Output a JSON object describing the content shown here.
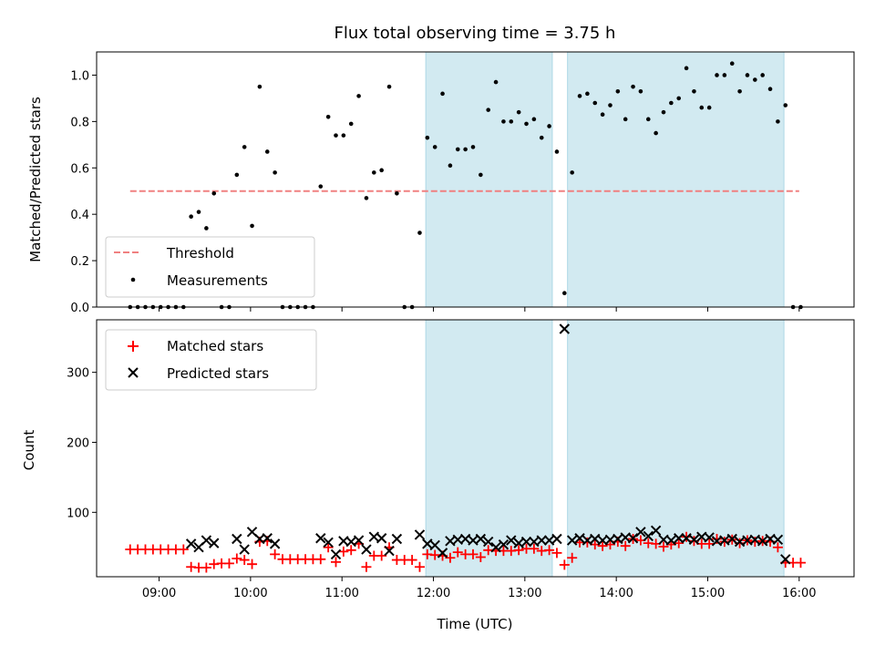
{
  "chart_data": [
    {
      "type": "scatter",
      "title": "Flux total observing time = 3.75 h",
      "xlabel": "",
      "ylabel": "Matched/Predicted stars",
      "ylim": [
        0,
        1.1
      ],
      "yticks": [
        "0.0",
        "0.2",
        "0.4",
        "0.6",
        "0.8",
        "1.0"
      ],
      "grid": false,
      "legend_position": "lower-left",
      "observing_windows": [
        [
          "11:55",
          "13:18"
        ],
        [
          "13:28",
          "15:50"
        ]
      ],
      "window_color": "#add8e6",
      "threshold": {
        "name": "Threshold",
        "y": 0.5,
        "x_range": [
          "08:41",
          "16:00"
        ],
        "color": "#f08080",
        "style": "dashed"
      },
      "series": [
        {
          "name": "Measurements",
          "marker": "dot",
          "color": "#000000",
          "points": [
            [
              "08:41",
              0
            ],
            [
              "08:46",
              0
            ],
            [
              "08:51",
              0
            ],
            [
              "08:56",
              0
            ],
            [
              "09:01",
              0
            ],
            [
              "09:06",
              0
            ],
            [
              "09:11",
              0
            ],
            [
              "09:16",
              0
            ],
            [
              "09:21",
              0.39
            ],
            [
              "09:26",
              0.41
            ],
            [
              "09:31",
              0.34
            ],
            [
              "09:36",
              0.49
            ],
            [
              "09:41",
              0
            ],
            [
              "09:46",
              0
            ],
            [
              "09:51",
              0.57
            ],
            [
              "09:56",
              0.69
            ],
            [
              "10:01",
              0.35
            ],
            [
              "10:06",
              0.95
            ],
            [
              "10:11",
              0.67
            ],
            [
              "10:16",
              0.58
            ],
            [
              "10:21",
              0
            ],
            [
              "10:26",
              0
            ],
            [
              "10:31",
              0
            ],
            [
              "10:36",
              0
            ],
            [
              "10:41",
              0
            ],
            [
              "10:46",
              0.52
            ],
            [
              "10:51",
              0.82
            ],
            [
              "10:56",
              0.74
            ],
            [
              "11:01",
              0.74
            ],
            [
              "11:06",
              0.79
            ],
            [
              "11:11",
              0.91
            ],
            [
              "11:16",
              0.47
            ],
            [
              "11:21",
              0.58
            ],
            [
              "11:26",
              0.59
            ],
            [
              "11:31",
              0.95
            ],
            [
              "11:36",
              0.49
            ],
            [
              "11:41",
              0
            ],
            [
              "11:46",
              0
            ],
            [
              "11:51",
              0.32
            ],
            [
              "11:56",
              0.73
            ],
            [
              "12:01",
              0.69
            ],
            [
              "12:06",
              0.92
            ],
            [
              "12:11",
              0.61
            ],
            [
              "12:16",
              0.68
            ],
            [
              "12:21",
              0.68
            ],
            [
              "12:26",
              0.69
            ],
            [
              "12:31",
              0.57
            ],
            [
              "12:36",
              0.85
            ],
            [
              "12:41",
              0.97
            ],
            [
              "12:46",
              0.8
            ],
            [
              "12:51",
              0.8
            ],
            [
              "12:56",
              0.84
            ],
            [
              "13:01",
              0.79
            ],
            [
              "13:06",
              0.81
            ],
            [
              "13:11",
              0.73
            ],
            [
              "13:16",
              0.78
            ],
            [
              "13:21",
              0.67
            ],
            [
              "13:26",
              0.06
            ],
            [
              "13:31",
              0.58
            ],
            [
              "13:36",
              0.91
            ],
            [
              "13:41",
              0.92
            ],
            [
              "13:46",
              0.88
            ],
            [
              "13:51",
              0.83
            ],
            [
              "13:56",
              0.87
            ],
            [
              "14:01",
              0.93
            ],
            [
              "14:06",
              0.81
            ],
            [
              "14:11",
              0.95
            ],
            [
              "14:16",
              0.93
            ],
            [
              "14:21",
              0.81
            ],
            [
              "14:26",
              0.75
            ],
            [
              "14:31",
              0.84
            ],
            [
              "14:36",
              0.88
            ],
            [
              "14:41",
              0.9
            ],
            [
              "14:46",
              1.03
            ],
            [
              "14:51",
              0.93
            ],
            [
              "14:56",
              0.86
            ],
            [
              "15:01",
              0.86
            ],
            [
              "15:06",
              1.0
            ],
            [
              "15:11",
              1.0
            ],
            [
              "15:16",
              1.05
            ],
            [
              "15:21",
              0.93
            ],
            [
              "15:26",
              1.0
            ],
            [
              "15:31",
              0.98
            ],
            [
              "15:36",
              1.0
            ],
            [
              "15:41",
              0.94
            ],
            [
              "15:46",
              0.8
            ],
            [
              "15:51",
              0.87
            ],
            [
              "15:56",
              0
            ],
            [
              "16:01",
              0
            ]
          ]
        }
      ],
      "legend": [
        {
          "label": "Threshold",
          "marker": "dashed-line",
          "color": "#f08080"
        },
        {
          "label": "Measurements",
          "marker": "dot",
          "color": "#000000"
        }
      ]
    },
    {
      "type": "scatter",
      "title": "",
      "xlabel": "Time (UTC)",
      "ylabel": "Count",
      "ylim": [
        8,
        375
      ],
      "yticks": [
        "100",
        "200",
        "300"
      ],
      "xticks": [
        "09:00",
        "10:00",
        "11:00",
        "12:00",
        "13:00",
        "14:00",
        "15:00",
        "16:00"
      ],
      "xlim": [
        "08:19",
        "16:36"
      ],
      "grid": false,
      "legend_position": "upper-left",
      "observing_windows": [
        [
          "11:55",
          "13:18"
        ],
        [
          "13:28",
          "15:50"
        ]
      ],
      "window_color": "#add8e6",
      "series": [
        {
          "name": "Matched stars",
          "marker": "plus",
          "color": "#ff0000",
          "points": [
            [
              "08:41",
              47
            ],
            [
              "08:46",
              47
            ],
            [
              "08:51",
              47
            ],
            [
              "08:56",
              47
            ],
            [
              "09:01",
              47
            ],
            [
              "09:06",
              47
            ],
            [
              "09:11",
              47
            ],
            [
              "09:16",
              47
            ],
            [
              "09:21",
              22
            ],
            [
              "09:26",
              21
            ],
            [
              "09:31",
              21
            ],
            [
              "09:36",
              26
            ],
            [
              "09:41",
              27
            ],
            [
              "09:46",
              27
            ],
            [
              "09:51",
              34
            ],
            [
              "09:56",
              32
            ],
            [
              "10:01",
              26
            ],
            [
              "10:06",
              58
            ],
            [
              "10:11",
              59
            ],
            [
              "10:16",
              40
            ],
            [
              "10:21",
              33
            ],
            [
              "10:26",
              33
            ],
            [
              "10:31",
              33
            ],
            [
              "10:36",
              33
            ],
            [
              "10:41",
              33
            ],
            [
              "10:46",
              33
            ],
            [
              "10:51",
              50
            ],
            [
              "10:56",
              29
            ],
            [
              "11:01",
              44
            ],
            [
              "11:06",
              46
            ],
            [
              "11:11",
              55
            ],
            [
              "11:16",
              22
            ],
            [
              "11:21",
              38
            ],
            [
              "11:26",
              38
            ],
            [
              "11:31",
              50
            ],
            [
              "11:36",
              32
            ],
            [
              "11:41",
              32
            ],
            [
              "11:46",
              32
            ],
            [
              "11:51",
              22
            ],
            [
              "11:56",
              40
            ],
            [
              "12:01",
              39
            ],
            [
              "12:06",
              38
            ],
            [
              "12:11",
              35
            ],
            [
              "12:16",
              43
            ],
            [
              "12:21",
              40
            ],
            [
              "12:26",
              40
            ],
            [
              "12:31",
              36
            ],
            [
              "12:36",
              46
            ],
            [
              "12:41",
              45
            ],
            [
              "12:46",
              45
            ],
            [
              "12:51",
              45
            ],
            [
              "12:56",
              46
            ],
            [
              "13:01",
              48
            ],
            [
              "13:06",
              48
            ],
            [
              "13:11",
              45
            ],
            [
              "13:16",
              46
            ],
            [
              "13:21",
              42
            ],
            [
              "13:26",
              25
            ],
            [
              "13:31",
              35
            ],
            [
              "13:36",
              57
            ],
            [
              "13:41",
              57
            ],
            [
              "13:46",
              54
            ],
            [
              "13:51",
              52
            ],
            [
              "13:56",
              54
            ],
            [
              "14:01",
              58
            ],
            [
              "14:06",
              52
            ],
            [
              "14:11",
              62
            ],
            [
              "14:16",
              60
            ],
            [
              "14:21",
              56
            ],
            [
              "14:26",
              55
            ],
            [
              "14:31",
              51
            ],
            [
              "14:36",
              54
            ],
            [
              "14:41",
              56
            ],
            [
              "14:46",
              65
            ],
            [
              "14:51",
              59
            ],
            [
              "14:56",
              55
            ],
            [
              "15:01",
              55
            ],
            [
              "15:06",
              62
            ],
            [
              "15:11",
              58
            ],
            [
              "15:16",
              61
            ],
            [
              "15:21",
              56
            ],
            [
              "15:26",
              60
            ],
            [
              "15:31",
              58
            ],
            [
              "15:36",
              59
            ],
            [
              "15:41",
              58
            ],
            [
              "15:46",
              50
            ],
            [
              "15:51",
              28
            ],
            [
              "15:56",
              28
            ],
            [
              "16:01",
              28
            ]
          ]
        },
        {
          "name": "Predicted stars",
          "marker": "x",
          "color": "#000000",
          "points": [
            [
              "09:21",
              55
            ],
            [
              "09:26",
              50
            ],
            [
              "09:31",
              60
            ],
            [
              "09:36",
              56
            ],
            [
              "09:51",
              62
            ],
            [
              "09:56",
              47
            ],
            [
              "10:01",
              72
            ],
            [
              "10:06",
              62
            ],
            [
              "10:11",
              63
            ],
            [
              "10:16",
              55
            ],
            [
              "10:46",
              63
            ],
            [
              "10:51",
              57
            ],
            [
              "10:56",
              40
            ],
            [
              "11:01",
              59
            ],
            [
              "11:06",
              58
            ],
            [
              "11:11",
              60
            ],
            [
              "11:16",
              47
            ],
            [
              "11:21",
              65
            ],
            [
              "11:26",
              63
            ],
            [
              "11:31",
              45
            ],
            [
              "11:36",
              62
            ],
            [
              "11:51",
              68
            ],
            [
              "11:56",
              55
            ],
            [
              "12:01",
              53
            ],
            [
              "12:06",
              42
            ],
            [
              "12:11",
              59
            ],
            [
              "12:16",
              61
            ],
            [
              "12:21",
              62
            ],
            [
              "12:26",
              60
            ],
            [
              "12:31",
              62
            ],
            [
              "12:36",
              58
            ],
            [
              "12:41",
              50
            ],
            [
              "12:46",
              54
            ],
            [
              "12:51",
              60
            ],
            [
              "12:56",
              56
            ],
            [
              "13:01",
              58
            ],
            [
              "13:06",
              58
            ],
            [
              "13:11",
              60
            ],
            [
              "13:16",
              60
            ],
            [
              "13:21",
              62
            ],
            [
              "13:26",
              362
            ],
            [
              "13:31",
              60
            ],
            [
              "13:36",
              63
            ],
            [
              "13:41",
              60
            ],
            [
              "13:46",
              62
            ],
            [
              "13:51",
              60
            ],
            [
              "13:56",
              61
            ],
            [
              "14:01",
              62
            ],
            [
              "14:06",
              64
            ],
            [
              "14:11",
              63
            ],
            [
              "14:16",
              72
            ],
            [
              "14:21",
              66
            ],
            [
              "14:26",
              74
            ],
            [
              "14:31",
              61
            ],
            [
              "14:36",
              60
            ],
            [
              "14:41",
              63
            ],
            [
              "14:46",
              63
            ],
            [
              "14:51",
              61
            ],
            [
              "14:56",
              65
            ],
            [
              "15:01",
              64
            ],
            [
              "15:06",
              59
            ],
            [
              "15:11",
              60
            ],
            [
              "15:16",
              62
            ],
            [
              "15:21",
              58
            ],
            [
              "15:26",
              60
            ],
            [
              "15:31",
              61
            ],
            [
              "15:36",
              59
            ],
            [
              "15:41",
              62
            ],
            [
              "15:46",
              61
            ],
            [
              "15:51",
              33
            ]
          ]
        }
      ],
      "legend": [
        {
          "label": "Matched stars",
          "marker": "plus",
          "color": "#ff0000"
        },
        {
          "label": "Predicted stars",
          "marker": "x",
          "color": "#000000"
        }
      ]
    }
  ]
}
